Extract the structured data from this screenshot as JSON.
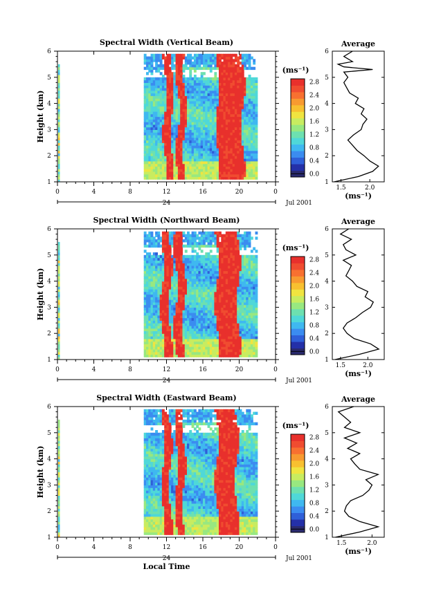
{
  "colorbar": {
    "unit": "(ms⁻¹)",
    "ticks": [
      "0.0",
      "0.4",
      "0.8",
      "1.2",
      "1.6",
      "2.0",
      "2.4",
      "2.8"
    ],
    "colors": [
      "#2a2a6e",
      "#2430a8",
      "#2f5fd8",
      "#3b8cf0",
      "#3fb8f0",
      "#4fd8d8",
      "#6de0b0",
      "#98e880",
      "#c8ec60",
      "#f0e440",
      "#f8c030",
      "#f89a30",
      "#f87030",
      "#f04c30",
      "#e8302c"
    ]
  },
  "chart_data": [
    {
      "type": "heatmap",
      "title": "Spectral Width (Vertical Beam)",
      "ylabel": "Height (km)",
      "ylim": [
        1,
        6
      ],
      "yticks": [
        "1",
        "2",
        "3",
        "4",
        "5",
        "6"
      ],
      "xlim": [
        0,
        24
      ],
      "xticks": [
        "0",
        "4",
        "8",
        "12",
        "16",
        "20",
        "0"
      ],
      "day_label": "24",
      "date_label": "Jul 2001",
      "data_coverage_hours": [
        9.5,
        21.8
      ],
      "data_coverage_km": [
        1.1,
        5.8
      ],
      "high_width_hours": [
        [
          11.7,
          12.5
        ],
        [
          13.1,
          13.9
        ],
        [
          17.5,
          20.3
        ]
      ],
      "average": {
        "title": "Average",
        "xlabel": "(ms⁻¹)",
        "xticks": [
          "1.5",
          "2.0"
        ],
        "xlim": [
          1.35,
          2.25
        ],
        "y": [
          1.0,
          1.2,
          1.4,
          1.6,
          1.8,
          2.0,
          2.2,
          2.4,
          2.6,
          2.8,
          3.0,
          3.2,
          3.4,
          3.6,
          3.8,
          4.0,
          4.2,
          4.4,
          4.6,
          4.8,
          5.0,
          5.2,
          5.3,
          5.4,
          5.5,
          5.6,
          5.8,
          6.0
        ],
        "x": [
          1.38,
          1.8,
          2.05,
          2.15,
          2.0,
          1.9,
          1.78,
          1.7,
          1.62,
          1.72,
          1.85,
          1.88,
          1.95,
          1.85,
          1.9,
          1.75,
          1.8,
          1.65,
          1.6,
          1.55,
          1.62,
          1.55,
          2.05,
          1.55,
          1.45,
          1.7,
          1.55,
          1.7
        ]
      }
    },
    {
      "type": "heatmap",
      "title": "Spectral Width (Northward Beam)",
      "ylabel": "Height (km)",
      "ylim": [
        1,
        6
      ],
      "yticks": [
        "1",
        "2",
        "3",
        "4",
        "5",
        "6"
      ],
      "xlim": [
        0,
        24
      ],
      "xticks": [
        "0",
        "4",
        "8",
        "12",
        "16",
        "20",
        "0"
      ],
      "day_label": "24",
      "date_label": "Jul 2001",
      "data_coverage_hours": [
        9.5,
        21.8
      ],
      "data_coverage_km": [
        1.1,
        5.8
      ],
      "high_width_hours": [
        [
          11.4,
          12.3
        ],
        [
          12.9,
          13.8
        ],
        [
          17.4,
          19.8
        ]
      ],
      "average": {
        "title": "Average",
        "xlabel": "(ms⁻¹)",
        "xticks": [
          "1.5",
          "2.0"
        ],
        "xlim": [
          1.35,
          2.3
        ],
        "y": [
          1.0,
          1.2,
          1.4,
          1.6,
          1.8,
          2.0,
          2.2,
          2.4,
          2.6,
          2.8,
          3.0,
          3.2,
          3.4,
          3.6,
          3.8,
          4.0,
          4.2,
          4.4,
          4.6,
          4.8,
          5.0,
          5.2,
          5.4,
          5.6,
          5.8,
          6.0
        ],
        "x": [
          1.4,
          1.85,
          2.2,
          2.05,
          1.75,
          1.62,
          1.55,
          1.62,
          1.78,
          1.9,
          2.05,
          2.1,
          1.95,
          2.0,
          1.8,
          1.72,
          1.6,
          1.65,
          1.7,
          1.55,
          1.78,
          1.6,
          1.55,
          1.7,
          1.5,
          1.65
        ]
      }
    },
    {
      "type": "heatmap",
      "title": "Spectral Width (Eastward Beam)",
      "ylabel": "Height (km)",
      "ylim": [
        1,
        6
      ],
      "yticks": [
        "1",
        "2",
        "3",
        "4",
        "5",
        "6"
      ],
      "xlim": [
        0,
        24
      ],
      "xticks": [
        "0",
        "4",
        "8",
        "12",
        "16",
        "20",
        "0"
      ],
      "day_label": "24",
      "date_label": "Jul 2001",
      "xlabel": "Local Time",
      "data_coverage_hours": [
        9.5,
        21.8
      ],
      "data_coverage_km": [
        1.1,
        5.8
      ],
      "high_width_hours": [
        [
          11.5,
          12.3
        ],
        [
          13.0,
          13.8
        ],
        [
          17.4,
          19.6
        ]
      ],
      "average": {
        "title": "Average",
        "xlabel": "(ms⁻¹)",
        "xticks": [
          "1.5",
          "2.0"
        ],
        "xlim": [
          1.35,
          2.2
        ],
        "y": [
          1.0,
          1.2,
          1.4,
          1.6,
          1.8,
          2.0,
          2.2,
          2.4,
          2.6,
          2.8,
          3.0,
          3.2,
          3.4,
          3.6,
          3.8,
          4.0,
          4.2,
          4.4,
          4.6,
          4.8,
          5.0,
          5.2,
          5.4,
          5.6,
          5.8,
          6.0
        ],
        "x": [
          1.4,
          1.8,
          2.1,
          1.8,
          1.62,
          1.55,
          1.58,
          1.65,
          1.85,
          1.95,
          2.0,
          1.9,
          2.1,
          1.8,
          1.72,
          1.65,
          1.8,
          1.6,
          1.75,
          1.55,
          1.8,
          1.55,
          1.65,
          1.55,
          1.45,
          1.7
        ]
      }
    }
  ]
}
